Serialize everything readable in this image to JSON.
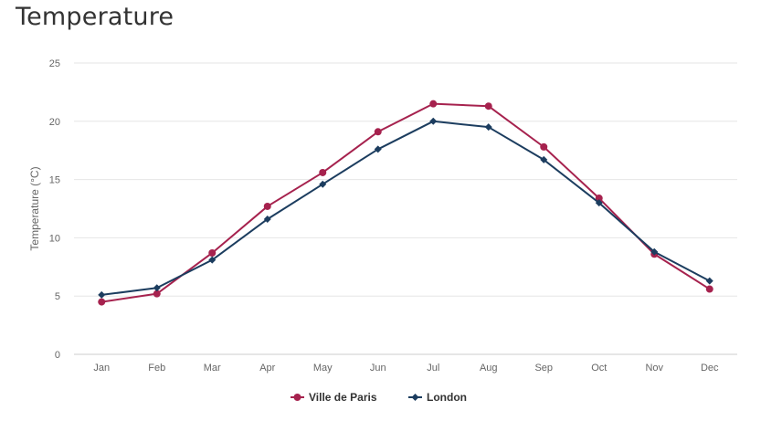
{
  "chart_data": {
    "type": "line",
    "title": "Temperature",
    "ylabel": "Temperature (°C)",
    "xlabel": "",
    "ylim": [
      0,
      25
    ],
    "yticks": [
      "0",
      "5",
      "10",
      "15",
      "20",
      "25"
    ],
    "grid": true,
    "legend_position": "bottom",
    "categories": [
      "Jan",
      "Feb",
      "Mar",
      "Apr",
      "May",
      "Jun",
      "Jul",
      "Aug",
      "Sep",
      "Oct",
      "Nov",
      "Dec"
    ],
    "series": [
      {
        "name": "Ville de Paris",
        "color": "#a6224e",
        "marker": "circle",
        "values": [
          4.5,
          5.2,
          8.7,
          12.7,
          15.6,
          19.1,
          21.5,
          21.3,
          17.8,
          13.4,
          8.6,
          5.6
        ]
      },
      {
        "name": "London",
        "color": "#1c3d5f",
        "marker": "diamond",
        "values": [
          5.1,
          5.7,
          8.1,
          11.6,
          14.6,
          17.6,
          20.0,
          19.5,
          16.7,
          13.0,
          8.8,
          6.3
        ]
      }
    ]
  }
}
